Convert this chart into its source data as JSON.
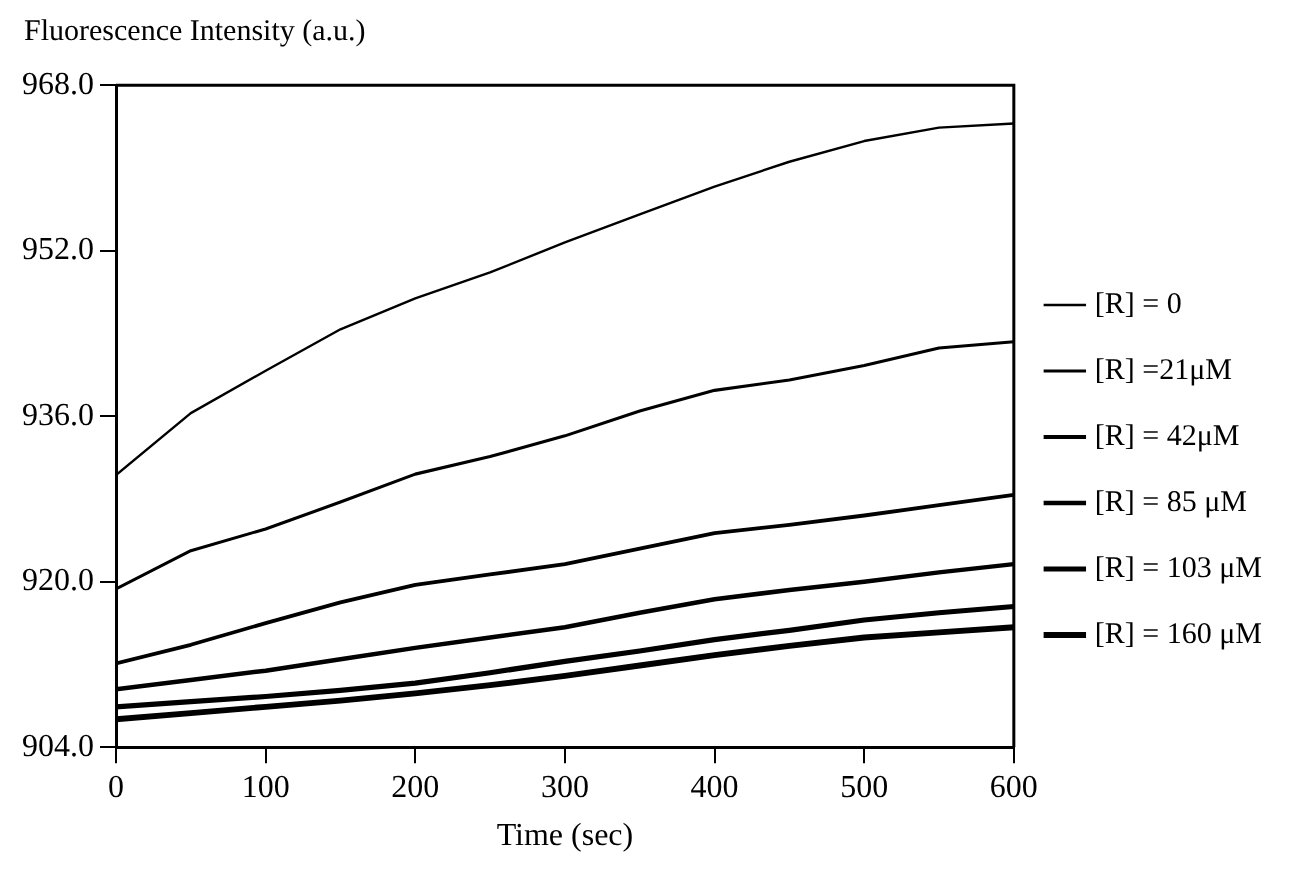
{
  "chart_data": {
    "type": "line",
    "ylabel": "Fluorescence Intensity (a.u.)",
    "xlabel": "Time (sec)",
    "x": [
      0,
      50,
      100,
      150,
      200,
      250,
      300,
      350,
      400,
      450,
      500,
      550,
      600
    ],
    "series": [
      {
        "name": "[R] = 0",
        "color": "#000000",
        "values": [
          930.3,
          936.3,
          940.4,
          944.4,
          947.4,
          949.9,
          952.8,
          955.5,
          958.2,
          960.6,
          962.6,
          963.9,
          964.3
        ]
      },
      {
        "name": "[R] =21μM",
        "color": "#000000",
        "values": [
          919.3,
          923.0,
          925.1,
          927.7,
          930.4,
          932.1,
          934.1,
          936.5,
          938.5,
          939.5,
          940.9,
          942.6,
          943.2
        ]
      },
      {
        "name": "[R] = 42μM",
        "color": "#000000",
        "values": [
          912.1,
          913.9,
          916.0,
          918.0,
          919.7,
          920.7,
          921.7,
          923.2,
          924.7,
          925.5,
          926.4,
          927.4,
          928.4
        ]
      },
      {
        "name": "[R] = 85 μM",
        "color": "#000000",
        "values": [
          909.6,
          910.5,
          911.4,
          912.5,
          913.6,
          914.6,
          915.6,
          917.0,
          918.3,
          919.2,
          920.0,
          920.9,
          921.7
        ]
      },
      {
        "name": "[R] = 103 μM",
        "color": "#000000",
        "values": [
          907.9,
          908.4,
          908.9,
          909.5,
          910.2,
          911.2,
          912.3,
          913.3,
          914.4,
          915.3,
          916.3,
          917.0,
          917.6
        ]
      },
      {
        "name": "[R] = 160 μM",
        "color": "#000000",
        "values": [
          906.7,
          907.3,
          907.9,
          908.5,
          909.2,
          910.0,
          910.9,
          911.9,
          912.9,
          913.8,
          914.6,
          915.1,
          915.6
        ]
      }
    ],
    "xlim": [
      0,
      600
    ],
    "xticks": [
      0,
      100,
      200,
      300,
      400,
      500,
      600
    ],
    "ylim": [
      904,
      968
    ],
    "yticks": [
      {
        "value": 904,
        "label": "904.0"
      },
      {
        "value": 920,
        "label": "920.0"
      },
      {
        "value": 936,
        "label": "936.0"
      },
      {
        "value": 952,
        "label": "952.0"
      },
      {
        "value": 968,
        "label": "968.0"
      }
    ],
    "grid": false,
    "legend": "right",
    "marker": "none",
    "line_style": "solid"
  }
}
